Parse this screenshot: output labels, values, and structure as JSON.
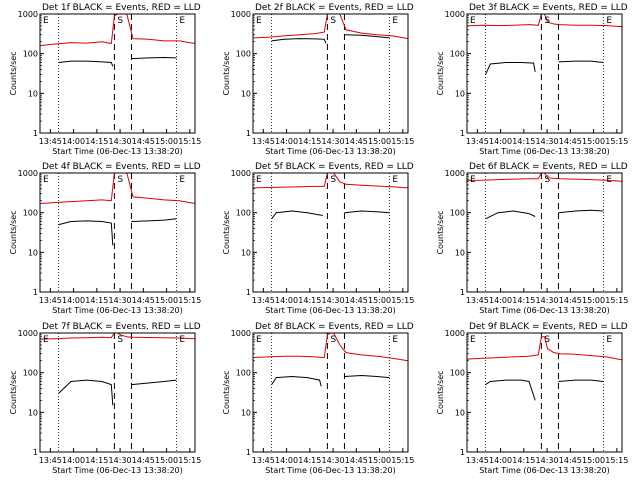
{
  "colors": {
    "events": "#000000",
    "lld": "#e00000",
    "axis": "#000000",
    "background": "#ffffff"
  },
  "common": {
    "ylabel": "Counts/sec",
    "xlabel": "Start Time (06-Dec-13 13:38:20)",
    "xticks": [
      "13:45",
      "14:00",
      "14:15",
      "14:30",
      "14:45",
      "15:00",
      "15:15"
    ],
    "yticks": [
      "1",
      "10",
      "100",
      "1000"
    ],
    "markers": [
      "E",
      "S",
      "E"
    ],
    "yscale": "log"
  },
  "chart_data": [
    {
      "type": "line",
      "title": "Det 1f BLACK = Events, RED = LLD",
      "x_unit": "minutes after 13:38:20",
      "xlim": [
        0,
        100
      ],
      "ylim": [
        1,
        1000
      ],
      "series": [
        {
          "name": "Events",
          "color": "#000000",
          "segments": [
            [
              [
                12,
                60
              ],
              [
                20,
                65
              ],
              [
                30,
                65
              ],
              [
                40,
                62
              ],
              [
                46,
                60
              ],
              [
                47,
                48
              ]
            ],
            [
              [
                59,
                75
              ],
              [
                70,
                78
              ],
              [
                80,
                80
              ],
              [
                88,
                78
              ]
            ]
          ]
        },
        {
          "name": "LLD",
          "color": "#e00000",
          "x": [
            0,
            10,
            20,
            30,
            40,
            46,
            48,
            50,
            52,
            56,
            60,
            70,
            80,
            90,
            100
          ],
          "y": [
            160,
            175,
            190,
            185,
            200,
            180,
            900,
            1000,
            1000,
            1000,
            240,
            230,
            210,
            210,
            180
          ]
        }
      ],
      "vlines_dashed": [
        48,
        59
      ],
      "vlines_dotted": [
        12,
        88
      ]
    },
    {
      "type": "line",
      "title": "Det 2f BLACK = Events, RED = LLD",
      "x_unit": "minutes after 13:38:20",
      "xlim": [
        0,
        100
      ],
      "ylim": [
        1,
        1000
      ],
      "series": [
        {
          "name": "Events",
          "color": "#000000",
          "segments": [
            [
              [
                12,
                210
              ],
              [
                20,
                230
              ],
              [
                30,
                240
              ],
              [
                40,
                235
              ],
              [
                46,
                230
              ],
              [
                47,
                180
              ]
            ],
            [
              [
                59,
                300
              ],
              [
                70,
                290
              ],
              [
                80,
                270
              ],
              [
                88,
                250
              ]
            ]
          ]
        },
        {
          "name": "LLD",
          "color": "#e00000",
          "x": [
            0,
            10,
            20,
            30,
            40,
            46,
            48,
            50,
            52,
            56,
            60,
            70,
            80,
            90,
            100
          ],
          "y": [
            250,
            260,
            280,
            300,
            320,
            350,
            1000,
            1000,
            1000,
            1000,
            400,
            330,
            300,
            280,
            240
          ]
        }
      ],
      "vlines_dashed": [
        48,
        59
      ],
      "vlines_dotted": [
        12,
        88
      ]
    },
    {
      "type": "line",
      "title": "Det 3f BLACK = Events, RED = LLD",
      "x_unit": "minutes after 13:38:20",
      "xlim": [
        0,
        100
      ],
      "ylim": [
        1,
        1000
      ],
      "series": [
        {
          "name": "Events",
          "color": "#000000",
          "segments": [
            [
              [
                12,
                30
              ],
              [
                15,
                55
              ],
              [
                25,
                60
              ],
              [
                35,
                60
              ],
              [
                43,
                58
              ],
              [
                44,
                35
              ]
            ],
            [
              [
                59,
                62
              ],
              [
                70,
                65
              ],
              [
                80,
                65
              ],
              [
                88,
                60
              ]
            ]
          ]
        },
        {
          "name": "LLD",
          "color": "#e00000",
          "x": [
            0,
            10,
            20,
            30,
            40,
            46,
            48,
            50,
            52,
            56,
            60,
            70,
            80,
            90,
            100
          ],
          "y": [
            500,
            520,
            510,
            520,
            540,
            520,
            1000,
            1000,
            620,
            560,
            540,
            520,
            520,
            510,
            480
          ]
        }
      ],
      "vlines_dashed": [
        48,
        59
      ],
      "vlines_dotted": [
        12,
        88
      ]
    },
    {
      "type": "line",
      "title": "Det 4f BLACK = Events, RED = LLD",
      "x_unit": "minutes after 13:38:20",
      "xlim": [
        0,
        100
      ],
      "ylim": [
        1,
        1000
      ],
      "series": [
        {
          "name": "Events",
          "color": "#000000",
          "segments": [
            [
              [
                12,
                50
              ],
              [
                20,
                60
              ],
              [
                30,
                62
              ],
              [
                40,
                60
              ],
              [
                46,
                55
              ],
              [
                47,
                15
              ]
            ],
            [
              [
                59,
                60
              ],
              [
                70,
                62
              ],
              [
                80,
                65
              ],
              [
                88,
                70
              ]
            ]
          ]
        },
        {
          "name": "LLD",
          "color": "#e00000",
          "x": [
            0,
            10,
            20,
            30,
            40,
            46,
            48,
            50,
            52,
            56,
            60,
            70,
            80,
            90,
            100
          ],
          "y": [
            170,
            180,
            190,
            200,
            210,
            200,
            1000,
            1000,
            1000,
            1000,
            250,
            230,
            210,
            200,
            170
          ]
        }
      ],
      "vlines_dashed": [
        48,
        59
      ],
      "vlines_dotted": [
        12,
        88
      ]
    },
    {
      "type": "line",
      "title": "Det 5f BLACK = Events, RED = LLD",
      "x_unit": "minutes after 13:38:20",
      "xlim": [
        0,
        100
      ],
      "ylim": [
        1,
        1000
      ],
      "series": [
        {
          "name": "Events",
          "color": "#000000",
          "segments": [
            [
              [
                12,
                70
              ],
              [
                15,
                100
              ],
              [
                25,
                110
              ],
              [
                35,
                100
              ],
              [
                45,
                85
              ]
            ],
            [
              [
                59,
                100
              ],
              [
                70,
                110
              ],
              [
                80,
                105
              ],
              [
                88,
                100
              ]
            ]
          ]
        },
        {
          "name": "LLD",
          "color": "#e00000",
          "x": [
            0,
            10,
            20,
            30,
            40,
            46,
            48,
            50,
            52,
            56,
            60,
            70,
            80,
            90,
            100
          ],
          "y": [
            420,
            430,
            440,
            450,
            460,
            460,
            1000,
            1000,
            1000,
            600,
            520,
            490,
            470,
            450,
            420
          ]
        }
      ],
      "vlines_dashed": [
        48,
        59
      ],
      "vlines_dotted": [
        12,
        88
      ]
    },
    {
      "type": "line",
      "title": "Det 6f BLACK = Events, RED = LLD",
      "x_unit": "minutes after 13:38:20",
      "xlim": [
        0,
        100
      ],
      "ylim": [
        1,
        1000
      ],
      "series": [
        {
          "name": "Events",
          "color": "#000000",
          "segments": [
            [
              [
                12,
                70
              ],
              [
                20,
                100
              ],
              [
                30,
                110
              ],
              [
                40,
                95
              ],
              [
                44,
                80
              ]
            ],
            [
              [
                59,
                100
              ],
              [
                70,
                110
              ],
              [
                80,
                115
              ],
              [
                88,
                110
              ]
            ]
          ]
        },
        {
          "name": "LLD",
          "color": "#e00000",
          "x": [
            0,
            10,
            20,
            30,
            40,
            46,
            48,
            50,
            52,
            56,
            60,
            70,
            80,
            90,
            100
          ],
          "y": [
            650,
            660,
            680,
            700,
            720,
            720,
            1000,
            1000,
            760,
            730,
            720,
            700,
            680,
            660,
            620
          ]
        }
      ],
      "vlines_dashed": [
        48,
        59
      ],
      "vlines_dotted": [
        12,
        88
      ]
    },
    {
      "type": "line",
      "title": "Det 7f BLACK = Events, RED = LLD",
      "x_unit": "minutes after 13:38:20",
      "xlim": [
        0,
        100
      ],
      "ylim": [
        1,
        1000
      ],
      "series": [
        {
          "name": "Events",
          "color": "#000000",
          "segments": [
            [
              [
                12,
                30
              ],
              [
                20,
                60
              ],
              [
                30,
                65
              ],
              [
                40,
                60
              ],
              [
                46,
                50
              ],
              [
                47,
                15
              ]
            ],
            [
              [
                59,
                50
              ],
              [
                70,
                55
              ],
              [
                80,
                60
              ],
              [
                88,
                65
              ]
            ]
          ]
        },
        {
          "name": "LLD",
          "color": "#e00000",
          "x": [
            0,
            10,
            20,
            30,
            40,
            46,
            48,
            50,
            52,
            56,
            60,
            70,
            80,
            90,
            100
          ],
          "y": [
            700,
            720,
            750,
            760,
            780,
            760,
            1000,
            1000,
            900,
            800,
            780,
            770,
            760,
            750,
            720
          ]
        }
      ],
      "vlines_dashed": [
        48,
        59
      ],
      "vlines_dotted": [
        12,
        88
      ]
    },
    {
      "type": "line",
      "title": "Det 8f BLACK = Events, RED = LLD",
      "x_unit": "minutes after 13:38:20",
      "xlim": [
        0,
        100
      ],
      "ylim": [
        1,
        1000
      ],
      "series": [
        {
          "name": "Events",
          "color": "#000000",
          "segments": [
            [
              [
                12,
                50
              ],
              [
                15,
                75
              ],
              [
                25,
                80
              ],
              [
                35,
                75
              ],
              [
                43,
                65
              ],
              [
                44,
                45
              ]
            ],
            [
              [
                59,
                80
              ],
              [
                70,
                85
              ],
              [
                80,
                80
              ],
              [
                88,
                75
              ]
            ]
          ]
        },
        {
          "name": "LLD",
          "color": "#e00000",
          "x": [
            0,
            10,
            20,
            30,
            40,
            46,
            48,
            50,
            52,
            56,
            60,
            70,
            80,
            90,
            100
          ],
          "y": [
            240,
            250,
            260,
            260,
            250,
            240,
            900,
            1000,
            1000,
            500,
            320,
            280,
            260,
            230,
            200
          ]
        }
      ],
      "vlines_dashed": [
        48,
        59
      ],
      "vlines_dotted": [
        12,
        88
      ]
    },
    {
      "type": "line",
      "title": "Det 9f BLACK = Events, RED = LLD",
      "x_unit": "minutes after 13:38:20",
      "xlim": [
        0,
        100
      ],
      "ylim": [
        1,
        1000
      ],
      "series": [
        {
          "name": "Events",
          "color": "#000000",
          "segments": [
            [
              [
                12,
                50
              ],
              [
                15,
                60
              ],
              [
                25,
                65
              ],
              [
                35,
                65
              ],
              [
                40,
                60
              ],
              [
                44,
                20
              ]
            ],
            [
              [
                59,
                60
              ],
              [
                70,
                65
              ],
              [
                80,
                65
              ],
              [
                88,
                60
              ]
            ]
          ]
        },
        {
          "name": "LLD",
          "color": "#e00000",
          "x": [
            0,
            10,
            20,
            30,
            40,
            46,
            48,
            50,
            52,
            56,
            60,
            70,
            80,
            90,
            100
          ],
          "y": [
            220,
            230,
            240,
            250,
            260,
            280,
            800,
            800,
            400,
            320,
            300,
            290,
            270,
            250,
            210
          ]
        }
      ],
      "vlines_dashed": [
        48,
        59
      ],
      "vlines_dotted": [
        12,
        88
      ]
    }
  ]
}
